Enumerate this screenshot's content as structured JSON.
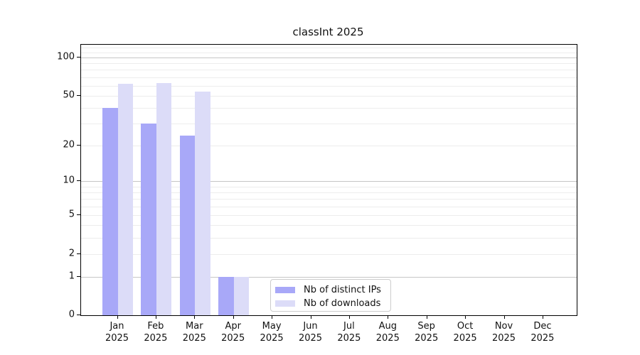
{
  "title": "classInt 2025",
  "colors": {
    "ips_bar": "#a8a8f8",
    "downloads_bar": "#dcdcf8",
    "grid_major": "#c6c6c6",
    "grid_minor": "#ededed",
    "axis": "#000000",
    "text": "#111111",
    "legend_border": "#cccccc"
  },
  "legend": {
    "items": [
      {
        "label": "Nb of distinct IPs",
        "color_key": "ips_bar"
      },
      {
        "label": "Nb of downloads",
        "color_key": "downloads_bar"
      }
    ]
  },
  "chart_data": {
    "type": "bar",
    "title": "classInt 2025",
    "xlabel": "",
    "ylabel": "",
    "scale": "log1p",
    "ylim": [
      0,
      125
    ],
    "grid": "on",
    "legend_position": "lower center-left inside",
    "categories": [
      "Jan",
      "Feb",
      "Mar",
      "Apr",
      "May",
      "Jun",
      "Jul",
      "Aug",
      "Sep",
      "Oct",
      "Nov",
      "Dec"
    ],
    "year_line": "2025",
    "series": [
      {
        "name": "Nb of distinct IPs",
        "values": [
          40,
          30,
          24,
          1,
          null,
          null,
          null,
          null,
          null,
          null,
          null,
          null
        ]
      },
      {
        "name": "Nb of downloads",
        "values": [
          62,
          63,
          54,
          1,
          null,
          null,
          null,
          null,
          null,
          null,
          null,
          null
        ]
      }
    ],
    "yticks": [
      0,
      1,
      2,
      5,
      10,
      20,
      50,
      100
    ],
    "major_gridlines": [
      1,
      10,
      100
    ],
    "minor_gridlines": [
      2,
      3,
      4,
      5,
      6,
      7,
      8,
      9,
      20,
      30,
      40,
      50,
      60,
      70,
      80,
      90,
      110,
      120
    ]
  }
}
